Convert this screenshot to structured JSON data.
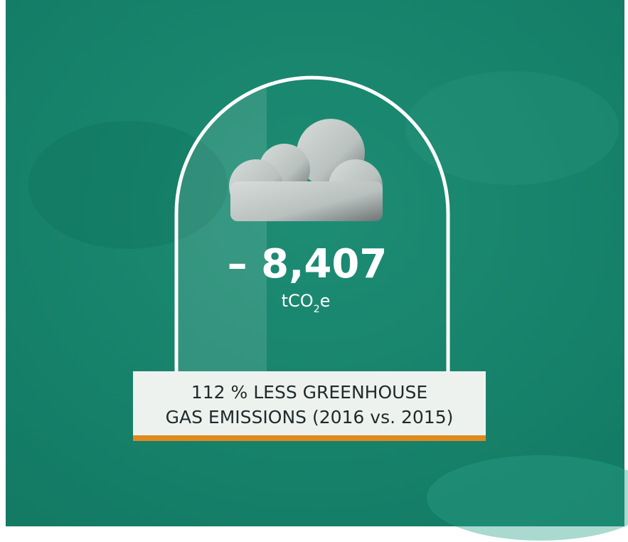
{
  "stat": {
    "value": "– 8,407",
    "unit": "tCO",
    "unit_subscript": "2",
    "unit_suffix": "e"
  },
  "banner": {
    "lines": [
      "112 % LESS GREENHOUSE",
      "GAS EMISSIONS (2016 vs. 2015)"
    ]
  }
}
